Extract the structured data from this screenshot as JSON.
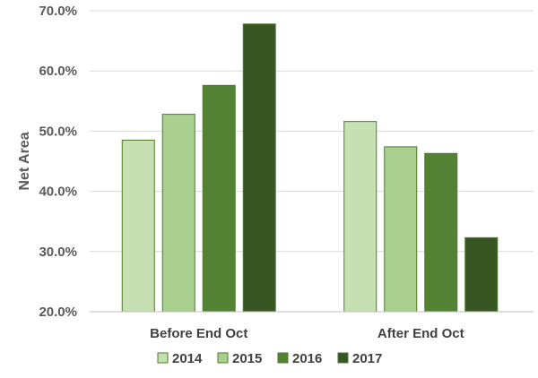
{
  "chart_data": {
    "type": "bar",
    "title": "",
    "xlabel": "",
    "ylabel": "Net Area",
    "ylim": [
      20,
      70
    ],
    "y_ticks": [
      "20.0%",
      "30.0%",
      "40.0%",
      "50.0%",
      "60.0%",
      "70.0%"
    ],
    "grid": true,
    "legend_position": "bottom",
    "categories": [
      "Before End Oct",
      "After End Oct"
    ],
    "series": [
      {
        "name": "2014",
        "color": "#c6e0b4",
        "values": [
          48.5,
          51.6
        ]
      },
      {
        "name": "2015",
        "color": "#a9d08e",
        "values": [
          52.8,
          47.4
        ]
      },
      {
        "name": "2016",
        "color": "#548235",
        "values": [
          57.6,
          46.3
        ]
      },
      {
        "name": "2017",
        "color": "#375623",
        "values": [
          67.8,
          32.3
        ]
      }
    ]
  }
}
